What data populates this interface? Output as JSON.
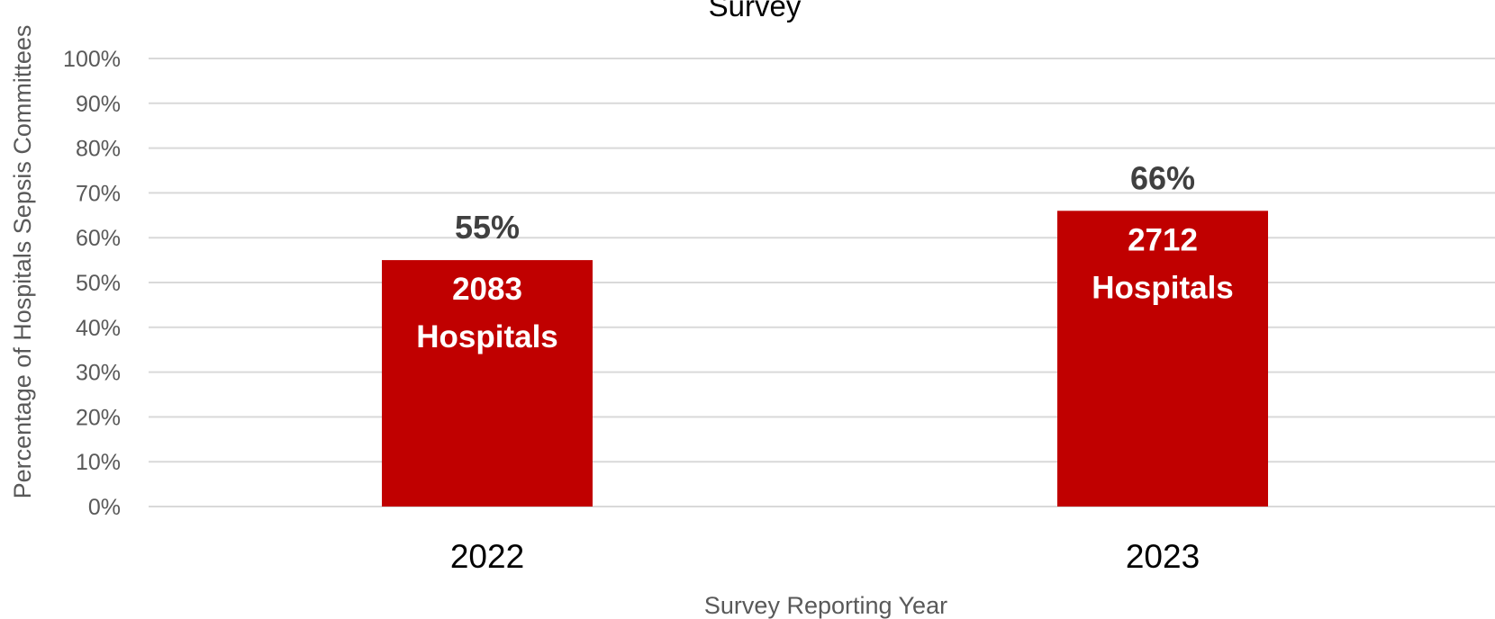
{
  "chart_data": {
    "type": "bar",
    "title": "Survey",
    "xlabel": "Survey Reporting Year",
    "ylabel": "Percentage of Hospitals Sepsis Committees",
    "categories": [
      "2022",
      "2023"
    ],
    "values": [
      55,
      66
    ],
    "value_labels": [
      "55%",
      "66%"
    ],
    "bar_annotations": [
      {
        "line1": "2083",
        "line2": "Hospitals"
      },
      {
        "line1": "2712",
        "line2": "Hospitals"
      }
    ],
    "yticks": [
      0,
      10,
      20,
      30,
      40,
      50,
      60,
      70,
      80,
      90,
      100
    ],
    "ytick_labels": [
      "0%",
      "10%",
      "20%",
      "30%",
      "40%",
      "50%",
      "60%",
      "70%",
      "80%",
      "90%",
      "100%"
    ],
    "ylim": [
      0,
      100
    ],
    "grid": true,
    "legend": "none",
    "colors": {
      "bar": "#c00000",
      "gridline": "#d9d9d9"
    }
  }
}
